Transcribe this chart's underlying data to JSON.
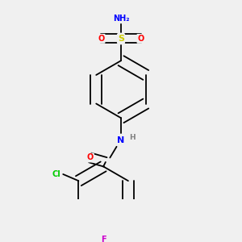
{
  "background_color": "#f0f0f0",
  "bond_color": "#000000",
  "atom_colors": {
    "S": "#cccc00",
    "O": "#ff0000",
    "N": "#0000ff",
    "H": "#808080",
    "Cl": "#00cc00",
    "F": "#cc00cc",
    "C": "#000000"
  },
  "figsize": [
    3.0,
    3.0
  ],
  "dpi": 100
}
